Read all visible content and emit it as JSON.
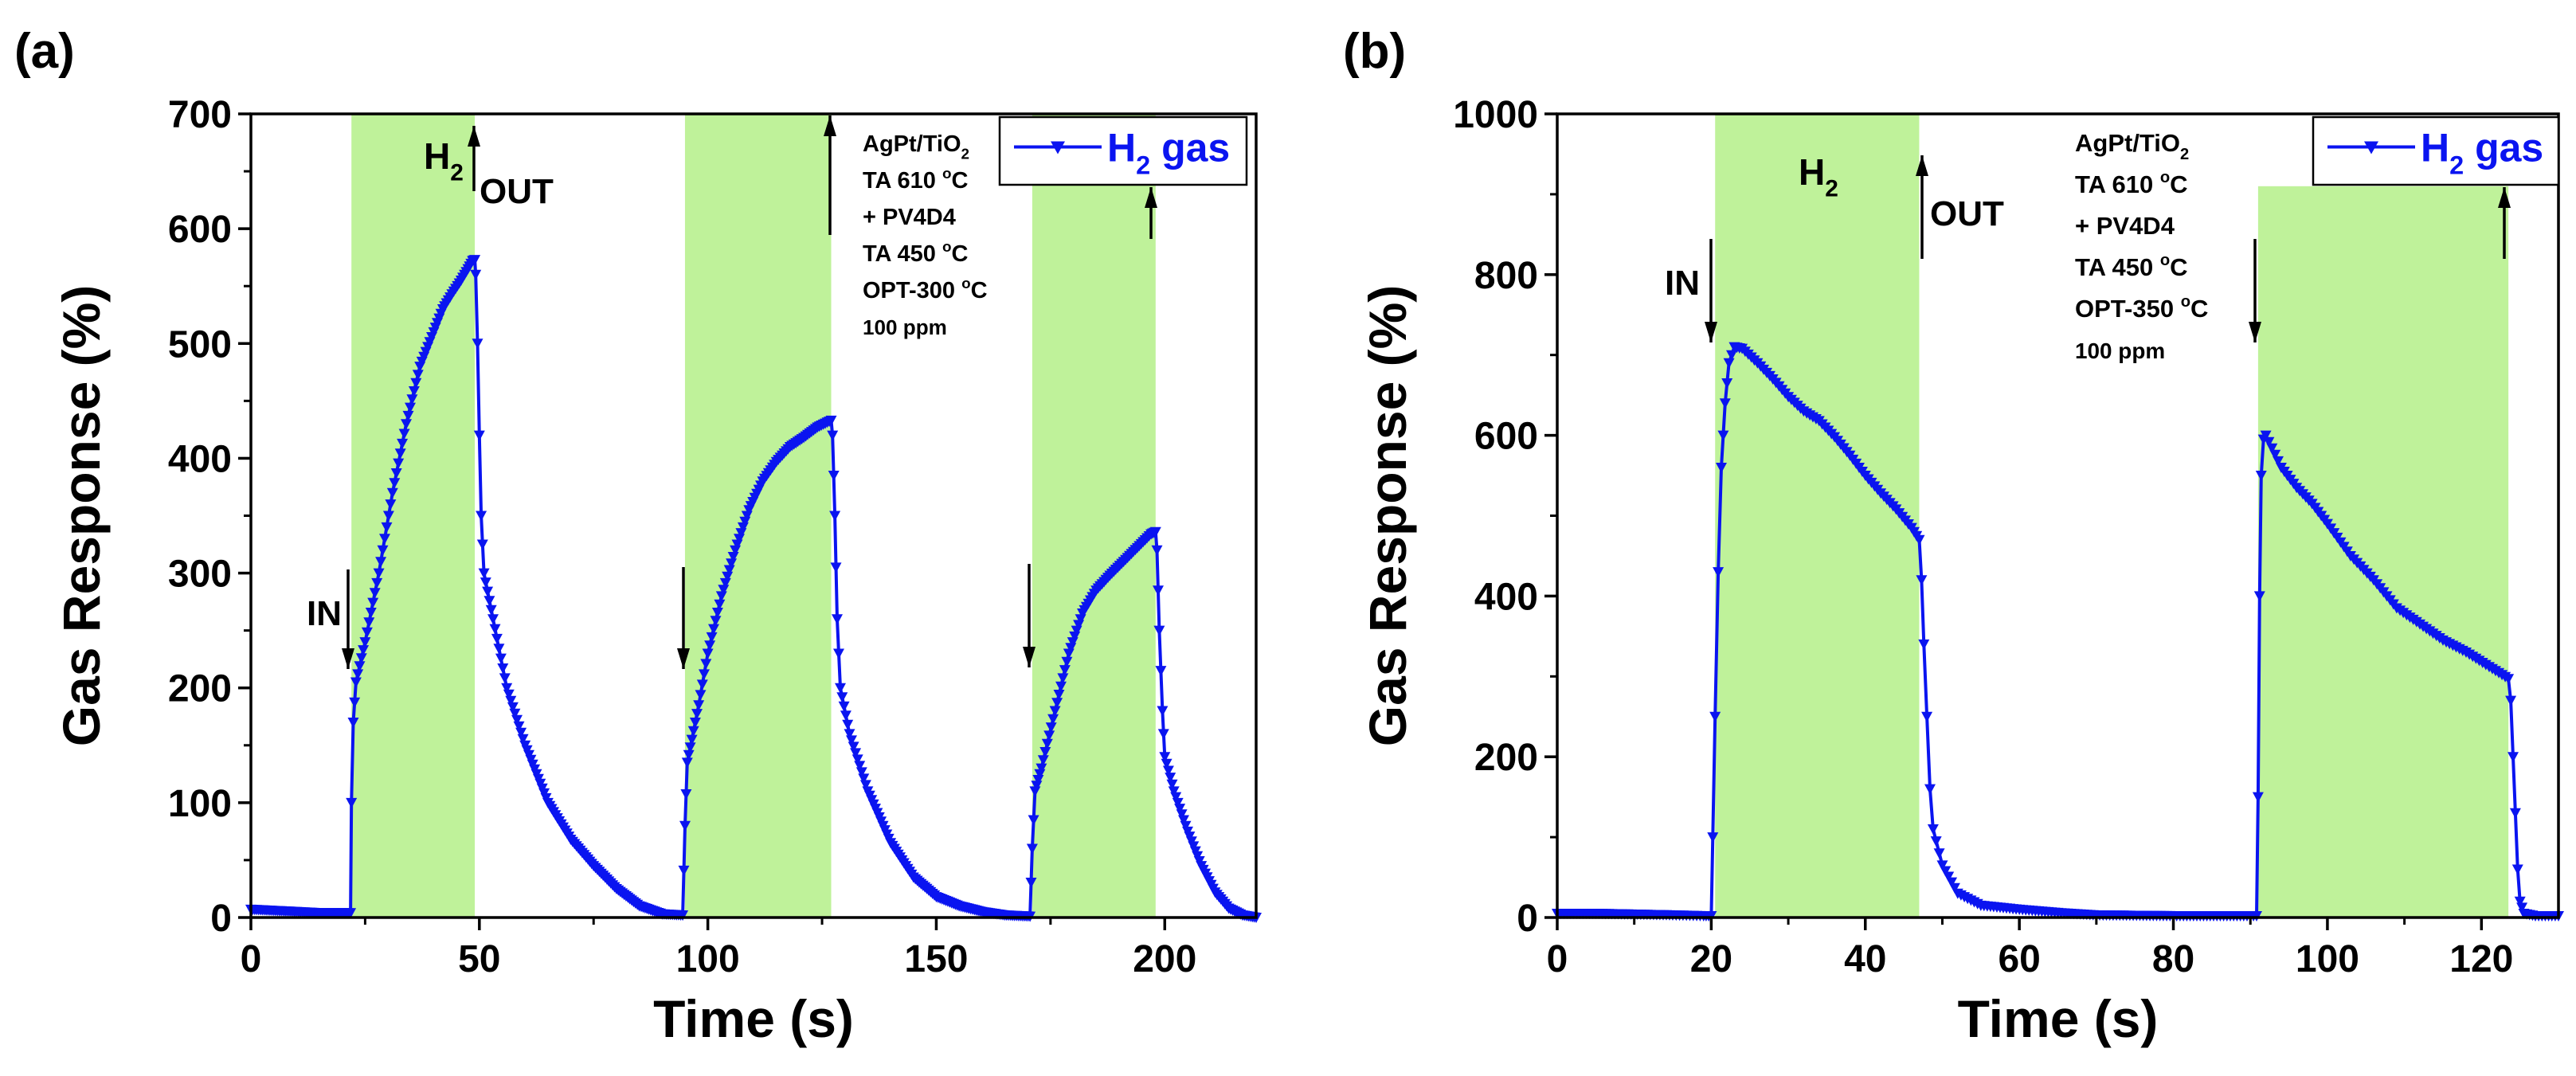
{
  "colors": {
    "series": "#0A14F0",
    "shade": "#BFF29A",
    "axis": "#000000"
  },
  "chart_data": [
    {
      "panel_label": "(a)",
      "type": "line",
      "xlabel": "Time (s)",
      "ylabel": "Gas Response (%)",
      "xlim": [
        0,
        220
      ],
      "ylim": [
        0,
        700
      ],
      "x_ticks": [
        0,
        50,
        100,
        150,
        200
      ],
      "y_ticks": [
        0,
        100,
        200,
        300,
        400,
        500,
        600,
        700
      ],
      "grid": false,
      "legend": {
        "label": "H",
        "label_sub": "2",
        "label_rest": " gas",
        "placement": "top-right"
      },
      "info_lines": [
        {
          "text": "AgPt/TiO",
          "sub": "2",
          "rest": ""
        },
        {
          "text": "TA 610 ",
          "sup": "o",
          "rest": "C"
        },
        {
          "text": "+ PV4D4",
          "sup": "",
          "rest": ""
        },
        {
          "text": "TA 450 ",
          "sup": "o",
          "rest": "C"
        },
        {
          "text": "OPT-300 ",
          "sup": "o",
          "rest": "C"
        },
        {
          "text": "100 ppm",
          "sup": "",
          "rest": ""
        }
      ],
      "gas_label": {
        "text": "H",
        "sub": "2"
      },
      "in_label": "IN",
      "out_label": "OUT",
      "exposure_windows": [
        [
          22,
          49
        ],
        [
          95,
          127
        ],
        [
          171,
          198
        ]
      ],
      "series": [
        {
          "name": "H2 gas",
          "marker": "triangle-down",
          "points": [
            [
              0,
              7
            ],
            [
              5,
              6
            ],
            [
              10,
              5
            ],
            [
              15,
              4
            ],
            [
              20,
              4
            ],
            [
              21.8,
              4
            ],
            [
              22,
              100
            ],
            [
              22.4,
              170
            ],
            [
              23,
              205
            ],
            [
              25,
              240
            ],
            [
              28,
              300
            ],
            [
              31,
              370
            ],
            [
              34,
              430
            ],
            [
              37,
              480
            ],
            [
              40,
              510
            ],
            [
              42,
              530
            ],
            [
              44,
              543
            ],
            [
              46,
              555
            ],
            [
              47.5,
              565
            ],
            [
              48.5,
              572
            ],
            [
              49,
              573
            ],
            [
              49.2,
              560
            ],
            [
              49.6,
              500
            ],
            [
              50,
              420
            ],
            [
              50.4,
              350
            ],
            [
              51,
              300
            ],
            [
              53,
              260
            ],
            [
              56,
              200
            ],
            [
              60,
              150
            ],
            [
              65,
              100
            ],
            [
              70,
              68
            ],
            [
              75,
              45
            ],
            [
              80,
              25
            ],
            [
              85,
              10
            ],
            [
              90,
              3
            ],
            [
              94.5,
              2
            ],
            [
              95,
              80
            ],
            [
              95.5,
              135
            ],
            [
              96.5,
              155
            ],
            [
              98,
              185
            ],
            [
              100,
              230
            ],
            [
              103,
              280
            ],
            [
              106,
              320
            ],
            [
              109,
              355
            ],
            [
              112,
              380
            ],
            [
              115,
              397
            ],
            [
              118,
              410
            ],
            [
              121,
              418
            ],
            [
              124,
              427
            ],
            [
              127,
              433
            ],
            [
              127.3,
              420
            ],
            [
              127.8,
              350
            ],
            [
              128.3,
              260
            ],
            [
              129,
              200
            ],
            [
              131,
              160
            ],
            [
              135,
              110
            ],
            [
              140,
              65
            ],
            [
              145,
              35
            ],
            [
              150,
              18
            ],
            [
              155,
              10
            ],
            [
              160,
              5
            ],
            [
              165,
              2
            ],
            [
              170.5,
              1
            ],
            [
              171,
              60
            ],
            [
              171.6,
              110
            ],
            [
              173,
              130
            ],
            [
              176,
              180
            ],
            [
              179,
              230
            ],
            [
              182,
              265
            ],
            [
              185,
              285
            ],
            [
              188,
              298
            ],
            [
              191,
              310
            ],
            [
              194,
              322
            ],
            [
              197,
              334
            ],
            [
              198,
              336
            ],
            [
              198.3,
              320
            ],
            [
              198.8,
              250
            ],
            [
              199.5,
              180
            ],
            [
              200,
              140
            ],
            [
              202,
              110
            ],
            [
              205,
              75
            ],
            [
              208,
              45
            ],
            [
              211,
              22
            ],
            [
              214,
              8
            ],
            [
              217,
              2
            ],
            [
              220,
              0
            ]
          ]
        }
      ]
    },
    {
      "panel_label": "(b)",
      "type": "line",
      "xlabel": "Time (s)",
      "ylabel": "Gas Response (%)",
      "xlim": [
        0,
        130
      ],
      "ylim": [
        0,
        1000
      ],
      "x_ticks": [
        0,
        20,
        40,
        60,
        80,
        100,
        120
      ],
      "y_ticks": [
        0,
        200,
        400,
        600,
        800,
        1000
      ],
      "grid": false,
      "legend": {
        "label": "H",
        "label_sub": "2",
        "label_rest": " gas",
        "placement": "top-right"
      },
      "info_lines": [
        {
          "text": "AgPt/TiO",
          "sub": "2",
          "rest": ""
        },
        {
          "text": "TA 610 ",
          "sup": "o",
          "rest": "C"
        },
        {
          "text": "+ PV4D4",
          "sup": "",
          "rest": ""
        },
        {
          "text": "TA 450 ",
          "sup": "o",
          "rest": "C"
        },
        {
          "text": "OPT-350 ",
          "sup": "o",
          "rest": "C"
        },
        {
          "text": "100 ppm",
          "sup": "",
          "rest": ""
        }
      ],
      "gas_label": {
        "text": "H",
        "sub": "2"
      },
      "in_label": "IN",
      "out_label": "OUT",
      "exposure_windows": [
        [
          20.5,
          47
        ],
        [
          91,
          123.5
        ]
      ],
      "series": [
        {
          "name": "H2 gas",
          "marker": "triangle-down",
          "points": [
            [
              0,
              5
            ],
            [
              5,
              5
            ],
            [
              10,
              4
            ],
            [
              15,
              3
            ],
            [
              19,
              2
            ],
            [
              20,
              2
            ],
            [
              20.2,
              100
            ],
            [
              20.5,
              250
            ],
            [
              20.9,
              430
            ],
            [
              21.3,
              560
            ],
            [
              21.8,
              640
            ],
            [
              22.3,
              690
            ],
            [
              23,
              710
            ],
            [
              24,
              708
            ],
            [
              26,
              690
            ],
            [
              28,
              670
            ],
            [
              30,
              648
            ],
            [
              32,
              630
            ],
            [
              34,
              618
            ],
            [
              36,
              598
            ],
            [
              38,
              575
            ],
            [
              40,
              550
            ],
            [
              42,
              528
            ],
            [
              44,
              508
            ],
            [
              46,
              485
            ],
            [
              47,
              470
            ],
            [
              47.3,
              420
            ],
            [
              47.6,
              340
            ],
            [
              48,
              250
            ],
            [
              48.4,
              160
            ],
            [
              48.8,
              110
            ],
            [
              50,
              65
            ],
            [
              52,
              30
            ],
            [
              55,
              15
            ],
            [
              60,
              10
            ],
            [
              65,
              6
            ],
            [
              70,
              3
            ],
            [
              80,
              2
            ],
            [
              90,
              2
            ],
            [
              90.8,
              2
            ],
            [
              91,
              150
            ],
            [
              91.2,
              400
            ],
            [
              91.4,
              550
            ],
            [
              91.7,
              595
            ],
            [
              92,
              600
            ],
            [
              94,
              560
            ],
            [
              96,
              535
            ],
            [
              98,
              515
            ],
            [
              100,
              490
            ],
            [
              103,
              450
            ],
            [
              106,
              420
            ],
            [
              109,
              385
            ],
            [
              112,
              365
            ],
            [
              115,
              345
            ],
            [
              118,
              330
            ],
            [
              121,
              312
            ],
            [
              123.5,
              297
            ],
            [
              123.8,
              270
            ],
            [
              124.1,
              200
            ],
            [
              124.4,
              130
            ],
            [
              124.7,
              60
            ],
            [
              125,
              20
            ],
            [
              125.5,
              5
            ],
            [
              127,
              2
            ],
            [
              130,
              2
            ]
          ]
        }
      ]
    }
  ]
}
